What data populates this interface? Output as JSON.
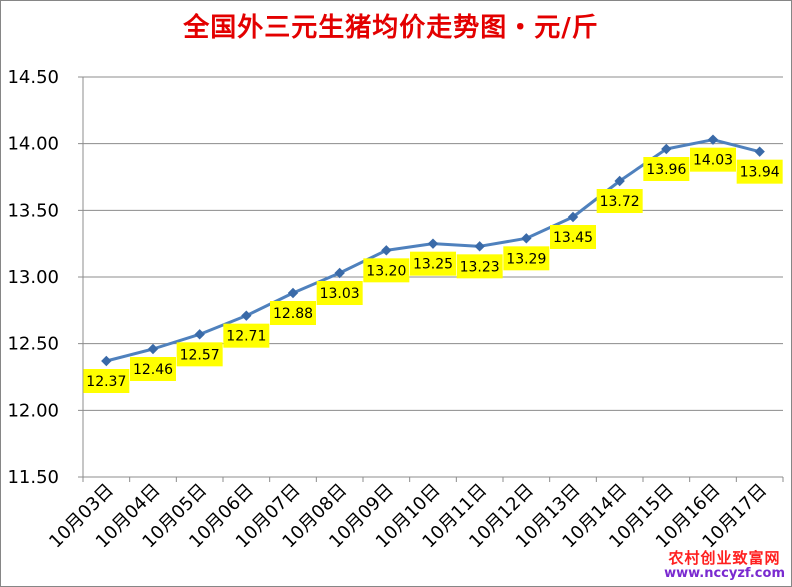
{
  "chart_data": {
    "type": "line",
    "title": "全国外三元生猪均价走势图・元/斤",
    "xlabel": "",
    "ylabel": "",
    "categories": [
      "10月03日",
      "10月04日",
      "10月05日",
      "10月06日",
      "10月07日",
      "10月08日",
      "10月09日",
      "10月10日",
      "10月11日",
      "10月12日",
      "10月13日",
      "10月14日",
      "10月15日",
      "10月16日",
      "10月17日"
    ],
    "series": [
      {
        "values": [
          12.37,
          12.46,
          12.57,
          12.71,
          12.88,
          13.03,
          13.2,
          13.25,
          13.23,
          13.29,
          13.45,
          13.72,
          13.96,
          14.03,
          13.94
        ]
      }
    ],
    "data_labels": [
      "12.37",
      "12.46",
      "12.57",
      "12.71",
      "12.88",
      "13.03",
      "13.20",
      "13.25",
      "13.23",
      "13.29",
      "13.45",
      "13.72",
      "13.96",
      "14.03",
      "13.94"
    ],
    "ylim": [
      11.5,
      14.5
    ],
    "yticks": [
      "11.50",
      "12.00",
      "12.50",
      "13.00",
      "13.50",
      "14.00",
      "14.50"
    ],
    "ytick_values": [
      11.5,
      12.0,
      12.5,
      13.0,
      13.5,
      14.0,
      14.5
    ],
    "grid": true,
    "legend": "none",
    "colors": {
      "line": "#4f81bd",
      "marker": "#3a6aa8",
      "label_bg": "#ffff00",
      "title": "#e30000"
    }
  },
  "watermark": {
    "name": "农村创业致富网",
    "url": "www.nccyzf.com"
  }
}
